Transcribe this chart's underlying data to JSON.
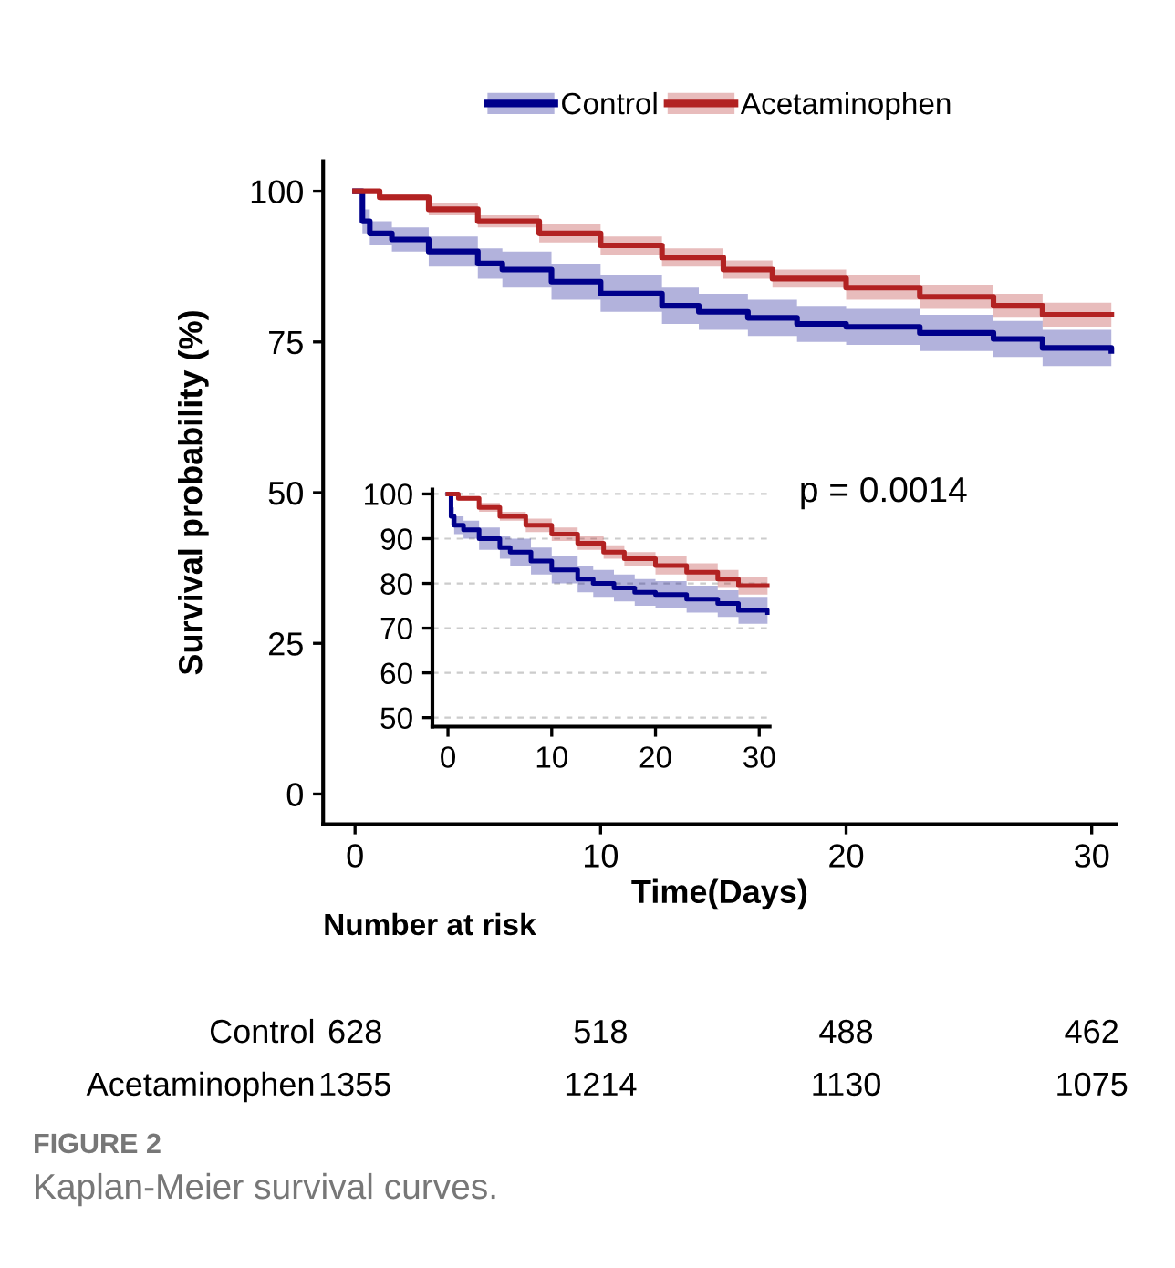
{
  "chart_data": [
    {
      "type": "step",
      "ylabel": "Survival probability (%)",
      "xlabel": "Time(Days)",
      "xlim": [
        -1.3,
        31
      ],
      "ylim": [
        -5,
        105
      ],
      "xticks": [
        0,
        10,
        20,
        30
      ],
      "yticks": [
        0,
        25,
        50,
        75,
        100
      ],
      "grid": false,
      "legend": "top",
      "annotations": [
        "p = 0.0014"
      ],
      "series": [
        {
          "name": "Control",
          "color": "#00008b",
          "x": [
            0,
            0.3,
            0.6,
            1.5,
            3,
            5,
            6,
            8,
            10,
            12.5,
            14,
            16,
            18,
            20,
            23,
            26,
            28,
            30.8
          ],
          "values": [
            100,
            95,
            93,
            92,
            90,
            88,
            87,
            85,
            83,
            81,
            80,
            79,
            78,
            77.5,
            76.5,
            75.5,
            74,
            73.5
          ],
          "lower": [
            100,
            93,
            91,
            90,
            87.5,
            85.5,
            84,
            82,
            80,
            78,
            77,
            76,
            75,
            74.5,
            73.5,
            72.5,
            71,
            70.5
          ],
          "upper": [
            100,
            97,
            95,
            94,
            92.5,
            90.5,
            90,
            88,
            86,
            84,
            83,
            82,
            81,
            80.5,
            79.5,
            78.5,
            77,
            76.5
          ]
        },
        {
          "name": "Acetaminophen",
          "color": "#b22222",
          "x": [
            0,
            1,
            3,
            5,
            7.5,
            10,
            12.5,
            15,
            17,
            20,
            23,
            26,
            28,
            30.8
          ],
          "values": [
            100,
            99,
            97,
            95,
            93,
            91,
            89,
            87,
            85.5,
            84,
            82.5,
            81,
            79.5,
            79.5
          ],
          "lower": [
            100,
            98.5,
            96,
            94,
            91.5,
            89.5,
            87.5,
            85.5,
            84,
            82,
            80.5,
            79,
            77.5,
            77.5
          ],
          "upper": [
            100,
            99.5,
            98,
            96,
            94.5,
            92.5,
            90.5,
            88.5,
            87,
            86,
            84.5,
            83,
            81.5,
            81.5
          ]
        }
      ]
    },
    {
      "type": "step",
      "xlim": [
        -1.5,
        31
      ],
      "ylim": [
        48,
        101
      ],
      "xticks": [
        0,
        10,
        20,
        30
      ],
      "yticks": [
        50,
        60,
        70,
        80,
        90,
        100
      ],
      "grid": "y",
      "legend": false,
      "series": [
        {
          "color": "#00008b",
          "x": [
            0,
            0.3,
            0.6,
            1.5,
            3,
            5,
            6,
            8,
            10,
            12.5,
            14,
            16,
            18,
            20,
            23,
            26,
            28,
            30.8
          ],
          "values": [
            100,
            95,
            93,
            92,
            90,
            88,
            87,
            85,
            83,
            81,
            80,
            79,
            78,
            77.5,
            76.5,
            75.5,
            74,
            73.5
          ],
          "lower": [
            100,
            93,
            91,
            90,
            87.5,
            85.5,
            84,
            82,
            80,
            78,
            77,
            76,
            75,
            74.5,
            73.5,
            72.5,
            71,
            70.5
          ],
          "upper": [
            100,
            97,
            95,
            94,
            92.5,
            90.5,
            90,
            88,
            86,
            84,
            83,
            82,
            81,
            80.5,
            79.5,
            78.5,
            77,
            76.5
          ]
        },
        {
          "color": "#b22222",
          "x": [
            0,
            1,
            3,
            5,
            7.5,
            10,
            12.5,
            15,
            17,
            20,
            23,
            26,
            28,
            30.8
          ],
          "values": [
            100,
            99,
            97,
            95,
            93,
            91,
            89,
            87,
            85.5,
            84,
            82.5,
            81,
            79.5,
            79.5
          ],
          "lower": [
            100,
            98.5,
            96,
            94,
            91.5,
            89.5,
            87.5,
            85.5,
            84,
            82,
            80.5,
            79,
            77.5,
            77.5
          ],
          "upper": [
            100,
            99.5,
            98,
            96,
            94.5,
            92.5,
            90.5,
            88.5,
            87,
            86,
            84.5,
            83,
            81.5,
            81.5
          ]
        }
      ]
    },
    {
      "type": "heatmap",
      "title": "Number at risk",
      "categories": [
        null,
        null,
        null,
        null
      ],
      "y_categories": [
        "Control",
        "Acetaminophen"
      ],
      "cells": [
        [
          628,
          518,
          488,
          462
        ],
        [
          1355,
          1214,
          1130,
          1075
        ]
      ],
      "data_labels": true,
      "annotations": [
        "FIGURE 2",
        "Kaplan-Meier survival curves."
      ]
    }
  ]
}
